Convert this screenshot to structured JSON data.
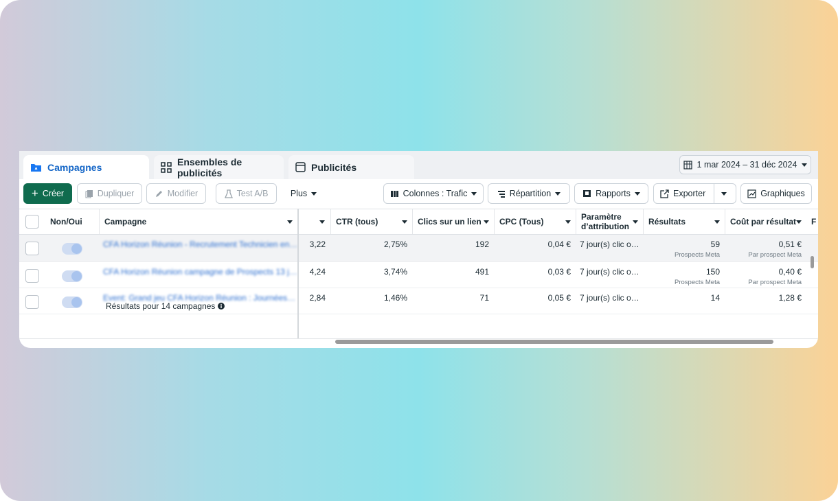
{
  "tabs": [
    "Campagnes",
    "Ensembles de publicités",
    "Publicités"
  ],
  "date_range": "1 mar 2024 – 31 déc 2024",
  "toolbar": {
    "create": "Créer",
    "duplicate": "Dupliquer",
    "edit": "Modifier",
    "ab_test": "Test A/B",
    "more": "Plus",
    "columns": "Colonnes : Trafic",
    "breakdown": "Répartition",
    "reports": "Rapports",
    "export": "Exporter",
    "charts": "Graphiques"
  },
  "table": {
    "columns": [
      "Non/Oui",
      "Campagne",
      "CTR (tous)",
      "Clics sur un lien",
      "CPC (Tous)",
      "Paramètre d’attribution",
      "Résultats",
      "Coût par résultat",
      "F"
    ],
    "rows": [
      {
        "campaign": "CFA Horizon Réunion - Recrutement Technicien en…",
        "metric": "3,22",
        "ctr": "2,75%",
        "clicks": "192",
        "cpc": "0,04 €",
        "attribution": "7 jour(s) clic o…",
        "results": "59",
        "results_sub": "Prospects Meta",
        "cost": "0,51 €",
        "cost_sub": "Par prospect Meta"
      },
      {
        "campaign": "CFA Horizon Réunion campagne de Prospects 13 j…",
        "metric": "4,24",
        "ctr": "3,74%",
        "clicks": "491",
        "cpc": "0,03 €",
        "attribution": "7 jour(s) clic o…",
        "results": "150",
        "results_sub": "Prospects Meta",
        "cost": "0,40 €",
        "cost_sub": "Par prospect Meta"
      },
      {
        "campaign": "Event: Grand jeu CFA Horizon Réunion : Journées…",
        "metric": "2,84",
        "ctr": "1,46%",
        "clicks": "71",
        "cpc": "0,05 €",
        "attribution": "7 jour(s) clic o…",
        "results": "14",
        "cost": "1,28 €"
      }
    ]
  },
  "footer": "Résultats pour 14 campagnes"
}
